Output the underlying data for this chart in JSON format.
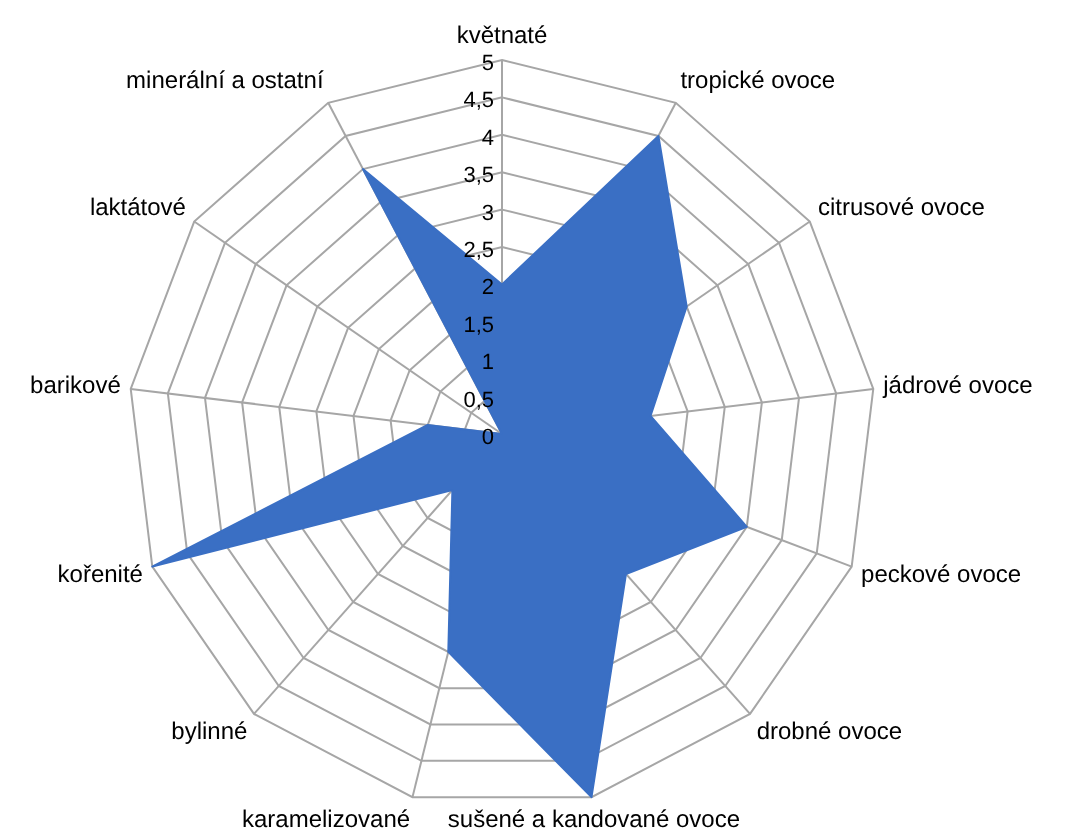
{
  "chart_data": {
    "type": "radar",
    "categories": [
      "květnaté",
      "tropické ovoce",
      "citrusové ovoce",
      "jádrové ovoce",
      "peckové ovoce",
      "drobné ovoce",
      "sušené a kandované ovoce",
      "karamelizované",
      "bylinné",
      "kořenité",
      "barikové",
      "laktátové",
      "minerální a ostatní"
    ],
    "series": [
      {
        "color": "#3a6fc4",
        "values": [
          2,
          4.5,
          3,
          2,
          3.5,
          2.5,
          5,
          3,
          1,
          5,
          1,
          0,
          4
        ]
      }
    ],
    "ylim": [
      0,
      5
    ],
    "yticks": [
      0,
      {
        "value": 0.5,
        "label": "0,5"
      },
      1,
      {
        "value": 1.5,
        "label": "1,5"
      },
      2,
      {
        "value": 2.5,
        "label": "2,5"
      },
      3,
      {
        "value": 3.5,
        "label": "3,5"
      },
      4,
      {
        "value": 4.5,
        "label": "4,5"
      },
      5
    ],
    "grid": true,
    "legend": false,
    "marker": "none"
  }
}
